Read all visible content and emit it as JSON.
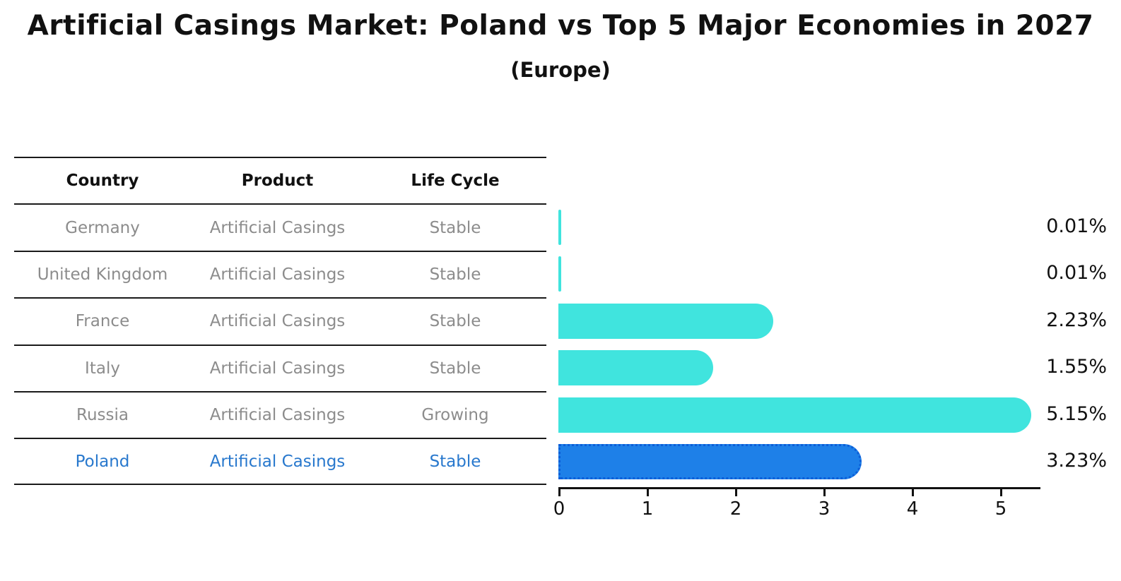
{
  "title": "Artificial Casings Market: Poland vs Top 5 Major Economies in 2027",
  "subtitle": "(Europe)",
  "table": {
    "headers": [
      "Country",
      "Product",
      "Life Cycle"
    ],
    "rows": [
      {
        "country": "Germany",
        "product": "Artificial Casings",
        "life_cycle": "Stable",
        "highlight": false
      },
      {
        "country": "United Kingdom",
        "product": "Artificial Casings",
        "life_cycle": "Stable",
        "highlight": false
      },
      {
        "country": "France",
        "product": "Artificial Casings",
        "life_cycle": "Stable",
        "highlight": false
      },
      {
        "country": "Italy",
        "product": "Artificial Casings",
        "life_cycle": "Stable",
        "highlight": false
      },
      {
        "country": "Russia",
        "product": "Artificial Casings",
        "life_cycle": "Growing",
        "highlight": false
      },
      {
        "country": "Poland",
        "product": "Artificial Casings",
        "life_cycle": "Stable",
        "highlight": true
      }
    ]
  },
  "chart_data": {
    "type": "bar",
    "orientation": "horizontal",
    "categories": [
      "Germany",
      "United Kingdom",
      "France",
      "Italy",
      "Russia",
      "Poland"
    ],
    "values": [
      0.01,
      0.01,
      2.23,
      1.55,
      5.15,
      3.23
    ],
    "value_labels": [
      "0.01%",
      "0.01%",
      "2.23%",
      "1.55%",
      "5.15%",
      "3.23%"
    ],
    "highlight_index": 5,
    "xticks": [
      "0",
      "1",
      "2",
      "3",
      "4",
      "5"
    ],
    "xlim": [
      0,
      5.45
    ],
    "grid": false,
    "legend": false,
    "bar_color": "#40e4de",
    "highlight_bar_color": "#1e80e8",
    "highlight_edge_color": "#0c5ed8",
    "highlight_text_color": "#2878cd",
    "text_color": "#8c8c8c"
  }
}
